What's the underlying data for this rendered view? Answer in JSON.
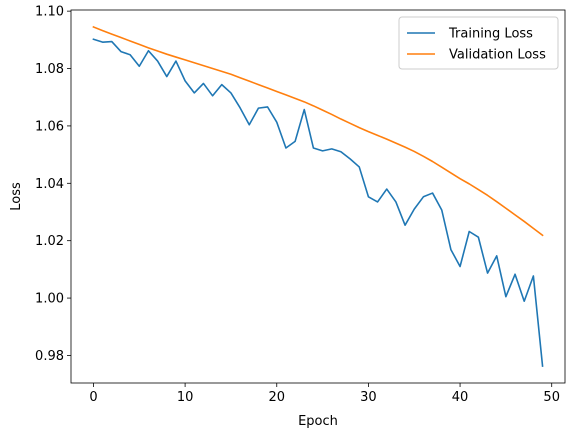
{
  "chart_data": {
    "type": "line",
    "title": "",
    "xlabel": "Epoch",
    "ylabel": "Loss",
    "xlim": [
      -2.45,
      51.45
    ],
    "ylim": [
      0.9704,
      1.1004
    ],
    "x_ticks": [
      0,
      10,
      20,
      30,
      40,
      50
    ],
    "y_ticks": [
      0.98,
      1.0,
      1.02,
      1.04,
      1.06,
      1.08,
      1.1
    ],
    "y_tick_labels": [
      "0.98",
      "1.00",
      "1.02",
      "1.04",
      "1.06",
      "1.08",
      "1.10"
    ],
    "grid": false,
    "legend_position": "top-right",
    "x": [
      0,
      1,
      2,
      3,
      4,
      5,
      6,
      7,
      8,
      9,
      10,
      11,
      12,
      13,
      14,
      15,
      16,
      17,
      18,
      19,
      20,
      21,
      22,
      23,
      24,
      25,
      26,
      27,
      28,
      29,
      30,
      31,
      32,
      33,
      34,
      35,
      36,
      37,
      38,
      39,
      40,
      41,
      42,
      43,
      44,
      45,
      46,
      47,
      48,
      49
    ],
    "series": [
      {
        "name": "Training Loss",
        "color": "#1f77b4",
        "values": [
          1.0902,
          1.0892,
          1.0894,
          1.0859,
          1.0848,
          1.0808,
          1.0862,
          1.0826,
          1.0772,
          1.0826,
          1.0757,
          1.0715,
          1.0748,
          1.0705,
          1.0744,
          1.0715,
          1.0663,
          1.0604,
          1.0662,
          1.0666,
          1.0613,
          1.0523,
          1.0546,
          1.0657,
          1.0523,
          1.0513,
          1.052,
          1.051,
          1.0485,
          1.0457,
          1.0353,
          1.0335,
          1.038,
          1.0335,
          1.0254,
          1.031,
          1.0353,
          1.0366,
          1.0307,
          1.0169,
          1.011,
          1.0232,
          1.0212,
          1.0087,
          1.0147,
          1.0005,
          1.0083,
          0.9989,
          1.0077,
          0.9763
        ]
      },
      {
        "name": "Validation Loss",
        "color": "#ff7f0e",
        "values": [
          1.0945,
          1.0932,
          1.092,
          1.0908,
          1.0896,
          1.0884,
          1.0872,
          1.0861,
          1.085,
          1.084,
          1.083,
          1.082,
          1.081,
          1.08,
          1.079,
          1.078,
          1.0768,
          1.0756,
          1.0744,
          1.0732,
          1.072,
          1.0708,
          1.0696,
          1.0684,
          1.067,
          1.0655,
          1.064,
          1.0624,
          1.0609,
          1.0594,
          1.058,
          1.0567,
          1.0554,
          1.054,
          1.0526,
          1.0511,
          1.0494,
          1.0476,
          1.0456,
          1.0436,
          1.0416,
          1.0398,
          1.0378,
          1.0358,
          1.0336,
          1.0313,
          1.029,
          1.0267,
          1.0243,
          1.0219
        ]
      }
    ]
  }
}
